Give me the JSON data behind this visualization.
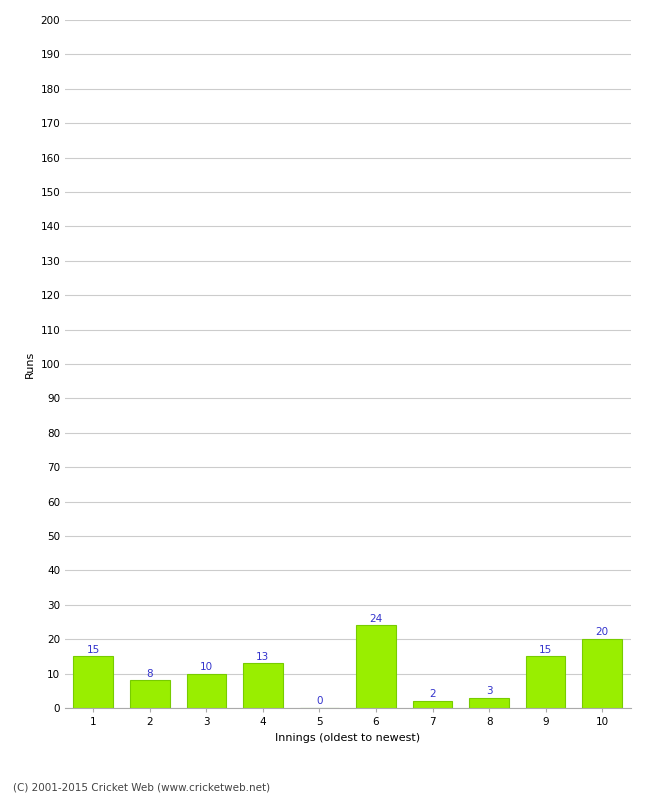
{
  "xlabel": "Innings (oldest to newest)",
  "ylabel": "Runs",
  "categories": [
    "1",
    "2",
    "3",
    "4",
    "5",
    "6",
    "7",
    "8",
    "9",
    "10"
  ],
  "values": [
    15,
    8,
    10,
    13,
    0,
    24,
    2,
    3,
    15,
    20
  ],
  "bar_color": "#99ee00",
  "bar_edge_color": "#77cc00",
  "label_color": "#3333cc",
  "ylim": [
    0,
    200
  ],
  "yticks": [
    0,
    10,
    20,
    30,
    40,
    50,
    60,
    70,
    80,
    90,
    100,
    110,
    120,
    130,
    140,
    150,
    160,
    170,
    180,
    190,
    200
  ],
  "footer": "(C) 2001-2015 Cricket Web (www.cricketweb.net)",
  "background_color": "#ffffff",
  "grid_color": "#cccccc",
  "label_fontsize": 7.5,
  "axis_fontsize": 7.5,
  "footer_fontsize": 7.5
}
